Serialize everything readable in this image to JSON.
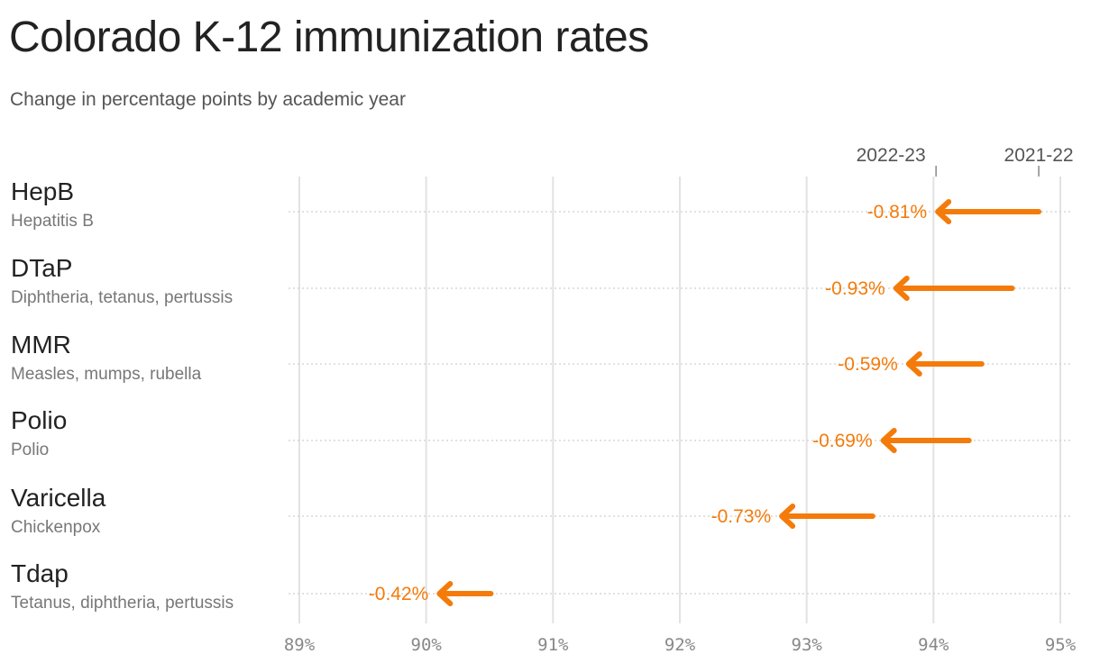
{
  "header": {
    "title": "Colorado K-12 immunization rates",
    "subtitle": "Change in percentage points by academic year"
  },
  "legend": {
    "start_label": "2021-22",
    "end_label": "2022-23"
  },
  "colors": {
    "arrow": "#f47b0a",
    "grid": "#e2e2e2",
    "text": "#222222",
    "muted": "#777777"
  },
  "rows": [
    {
      "name": "HepB",
      "desc": "Hepatitis B",
      "change": "-0.81%"
    },
    {
      "name": "DTaP",
      "desc": "Diphtheria, tetanus, pertussis",
      "change": "-0.93%"
    },
    {
      "name": "MMR",
      "desc": "Measles, mumps, rubella",
      "change": "-0.59%"
    },
    {
      "name": "Polio",
      "desc": "Polio",
      "change": "-0.69%"
    },
    {
      "name": "Varicella",
      "desc": "Chickenpox",
      "change": "-0.73%"
    },
    {
      "name": "Tdap",
      "desc": "Tetanus, diphtheria, pertussis",
      "change": "-0.42%"
    }
  ],
  "chart_data": {
    "type": "arrow-dot",
    "title": "Colorado K-12 immunization rates",
    "subtitle": "Change in percentage points by academic year",
    "categories": [
      "HepB",
      "DTaP",
      "MMR",
      "Polio",
      "Varicella",
      "Tdap"
    ],
    "category_descriptions": [
      "Hepatitis B",
      "Diphtheria, tetanus, pertussis",
      "Measles, mumps, rubella",
      "Polio",
      "Chickenpox",
      "Tetanus, diphtheria, pertussis"
    ],
    "series": [
      {
        "name": "2021-22",
        "values": [
          94.83,
          94.62,
          94.38,
          94.28,
          93.52,
          90.51
        ]
      },
      {
        "name": "2022-23",
        "values": [
          94.02,
          93.69,
          93.79,
          93.59,
          92.79,
          90.09
        ]
      }
    ],
    "change_labels": [
      "-0.81%",
      "-0.93%",
      "-0.59%",
      "-0.69%",
      "-0.73%",
      "-0.42%"
    ],
    "changes": [
      -0.81,
      -0.93,
      -0.59,
      -0.69,
      -0.73,
      -0.42
    ],
    "xlabel": "",
    "ylabel": "",
    "xlim": [
      89,
      95
    ],
    "x_ticks": [
      "89%",
      "90%",
      "91%",
      "92%",
      "93%",
      "94%",
      "95%"
    ],
    "grid": true,
    "legend_position": "top-right annotations"
  }
}
